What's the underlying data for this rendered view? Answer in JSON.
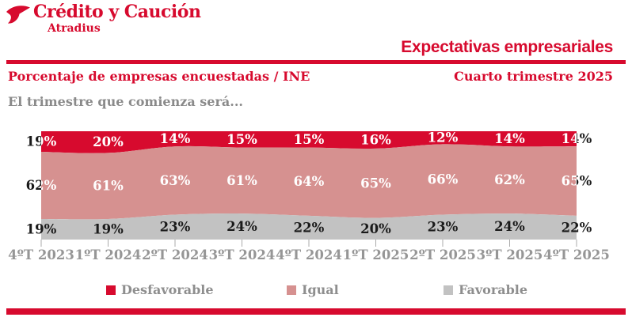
{
  "logo": {
    "title": "Crédito y Caución",
    "subtitle": "Atradius"
  },
  "header": {
    "title": "Expectativas empresariales",
    "left_subtitle": "Porcentaje de empresas encuestadas / INE",
    "right_subtitle": "Cuarto trimestre 2025"
  },
  "intro": "El trimestre que comienza será...",
  "colors": {
    "brand_red": "#D70A2E",
    "igual_pink": "#D69190",
    "favorable_gray": "#C2C2C2",
    "axis_text": "#969696",
    "legend_text": "#8E8E8E",
    "intro_text": "#8A8A8A",
    "label_light": "#FFFFFF",
    "label_dark": "#1A1A1A"
  },
  "chart_data": {
    "type": "area",
    "stacked": true,
    "title": "El trimestre que comienza será...",
    "categories": [
      "4ºT 2023",
      "1ºT 2024",
      "2ºT 2024",
      "3ºT 2024",
      "4ºT 2024",
      "1ºT 2025",
      "2ºT 2025",
      "3ºT 2025",
      "4ºT 2025"
    ],
    "series": [
      {
        "name": "Desfavorable",
        "color": "#D70A2E",
        "values": [
          19,
          20,
          14,
          15,
          15,
          16,
          12,
          14,
          14
        ]
      },
      {
        "name": "Igual",
        "color": "#D69190",
        "values": [
          62,
          61,
          63,
          61,
          64,
          65,
          66,
          62,
          65
        ]
      },
      {
        "name": "Favorable",
        "color": "#C2C2C2",
        "values": [
          19,
          19,
          23,
          24,
          22,
          20,
          23,
          24,
          22
        ]
      }
    ],
    "stack_order_top_to_bottom": [
      "Desfavorable",
      "Igual",
      "Favorable"
    ],
    "value_suffix": "%",
    "ylim": [
      0,
      100
    ],
    "grid": false,
    "legend_position": "bottom"
  }
}
